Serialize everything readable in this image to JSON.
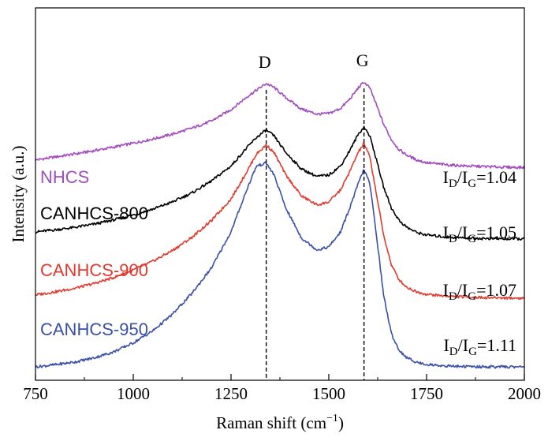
{
  "chart_data": {
    "type": "line",
    "title": "",
    "xlabel": "Raman shift (cm",
    "xlabel_sup": "−1",
    "xlabel_close": ")",
    "ylabel": "Intensity (a.u.)",
    "xlim": [
      750,
      2000
    ],
    "ylim": [
      0,
      1
    ],
    "yticks_shown": false,
    "x_ticks": [
      {
        "value": 750,
        "label": "750"
      },
      {
        "value": 1000,
        "label": "1000"
      },
      {
        "value": 1250,
        "label": "1250"
      },
      {
        "value": 1500,
        "label": "1500"
      },
      {
        "value": 1750,
        "label": "1750"
      },
      {
        "value": 2000,
        "label": "2000"
      }
    ],
    "peak_lines": [
      {
        "label": "D",
        "x": 1340
      },
      {
        "label": "G",
        "x": 1590
      }
    ],
    "series": [
      {
        "name": "NHCS",
        "color": "#a24bbf",
        "ratio_prefix": "I",
        "ratio_sub1": "D",
        "ratio_slash": "/I",
        "ratio_sub2": "G",
        "ratio_value": "=1.04",
        "x": [
          750,
          800,
          850,
          900,
          950,
          1000,
          1050,
          1100,
          1150,
          1200,
          1250,
          1290,
          1315,
          1340,
          1360,
          1390,
          1430,
          1470,
          1500,
          1530,
          1555,
          1575,
          1590,
          1605,
          1620,
          1640,
          1660,
          1680,
          1700,
          1725,
          1750,
          1800,
          1850,
          1900,
          1950,
          2000
        ],
        "y": [
          0.69,
          0.7,
          0.71,
          0.721,
          0.733,
          0.746,
          0.76,
          0.776,
          0.796,
          0.82,
          0.858,
          0.9,
          0.923,
          0.945,
          0.932,
          0.898,
          0.86,
          0.843,
          0.845,
          0.862,
          0.895,
          0.93,
          0.95,
          0.93,
          0.88,
          0.81,
          0.758,
          0.724,
          0.706,
          0.69,
          0.681,
          0.674,
          0.67,
          0.668,
          0.666,
          0.665
        ]
      },
      {
        "name": "CANHCS-800",
        "color": "#000000",
        "ratio_prefix": "I",
        "ratio_sub1": "D",
        "ratio_slash": "/I",
        "ratio_sub2": "G",
        "ratio_value": "=1.05",
        "x": [
          750,
          800,
          850,
          900,
          950,
          1000,
          1050,
          1100,
          1150,
          1200,
          1250,
          1290,
          1315,
          1340,
          1360,
          1390,
          1430,
          1470,
          1500,
          1530,
          1555,
          1575,
          1590,
          1605,
          1620,
          1640,
          1660,
          1680,
          1700,
          1725,
          1750,
          1800,
          1850,
          1900,
          1950,
          2000
        ],
        "y": [
          0.45,
          0.457,
          0.465,
          0.476,
          0.49,
          0.507,
          0.526,
          0.55,
          0.58,
          0.62,
          0.67,
          0.73,
          0.765,
          0.79,
          0.77,
          0.715,
          0.66,
          0.635,
          0.64,
          0.67,
          0.725,
          0.775,
          0.8,
          0.77,
          0.7,
          0.6,
          0.53,
          0.488,
          0.465,
          0.448,
          0.44,
          0.433,
          0.43,
          0.428,
          0.427,
          0.427
        ]
      },
      {
        "name": "CANHCS-900",
        "color": "#e03a2f",
        "ratio_prefix": "I",
        "ratio_sub1": "D",
        "ratio_slash": "/I",
        "ratio_sub2": "G",
        "ratio_value": "=1.07",
        "x": [
          750,
          800,
          850,
          900,
          950,
          1000,
          1050,
          1100,
          1150,
          1200,
          1250,
          1290,
          1315,
          1340,
          1360,
          1390,
          1430,
          1470,
          1500,
          1530,
          1555,
          1575,
          1590,
          1605,
          1620,
          1640,
          1660,
          1680,
          1700,
          1725,
          1750,
          1800,
          1850,
          1900,
          1950,
          2000
        ],
        "y": [
          0.24,
          0.25,
          0.262,
          0.278,
          0.298,
          0.323,
          0.352,
          0.388,
          0.432,
          0.488,
          0.56,
          0.65,
          0.71,
          0.74,
          0.715,
          0.64,
          0.57,
          0.54,
          0.55,
          0.59,
          0.655,
          0.715,
          0.745,
          0.7,
          0.59,
          0.44,
          0.34,
          0.29,
          0.265,
          0.25,
          0.242,
          0.236,
          0.233,
          0.231,
          0.23,
          0.229
        ]
      },
      {
        "name": "CANHCS-950",
        "color": "#3a4fa8",
        "ratio_prefix": "I",
        "ratio_sub1": "D",
        "ratio_slash": "/I",
        "ratio_sub2": "G",
        "ratio_value": "=1.11",
        "x": [
          750,
          800,
          850,
          900,
          950,
          1000,
          1050,
          1100,
          1150,
          1200,
          1250,
          1290,
          1315,
          1340,
          1360,
          1390,
          1430,
          1470,
          1500,
          1530,
          1555,
          1575,
          1590,
          1605,
          1620,
          1640,
          1660,
          1680,
          1700,
          1725,
          1750,
          1800,
          1850,
          1900,
          1950,
          2000
        ],
        "y": [
          0.0,
          0.007,
          0.016,
          0.03,
          0.05,
          0.08,
          0.12,
          0.175,
          0.245,
          0.33,
          0.45,
          0.59,
          0.67,
          0.68,
          0.64,
          0.53,
          0.43,
          0.39,
          0.4,
          0.45,
          0.535,
          0.61,
          0.66,
          0.61,
          0.46,
          0.24,
          0.11,
          0.055,
          0.03,
          0.015,
          0.008,
          0.003,
          0.001,
          0.0,
          0.0,
          0.0
        ]
      }
    ]
  }
}
